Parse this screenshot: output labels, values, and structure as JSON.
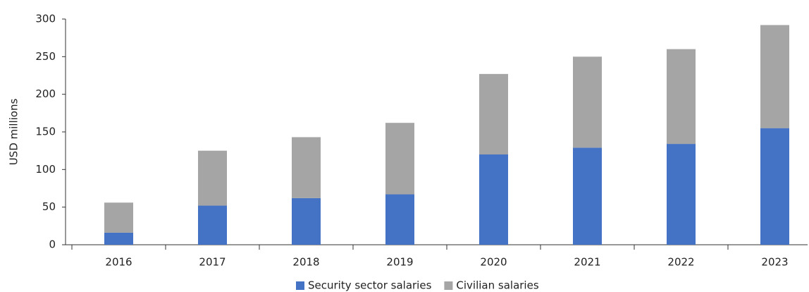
{
  "chart_data": {
    "type": "bar",
    "stacked": true,
    "y_label": "USD millions",
    "categories": [
      "2016",
      "2017",
      "2018",
      "2019",
      "2020",
      "2021",
      "2022",
      "2023"
    ],
    "series": [
      {
        "name": "Security sector salaries",
        "color": "#4472c4",
        "values": [
          16,
          52,
          62,
          67,
          120,
          129,
          134,
          155
        ]
      },
      {
        "name": "Civilian salaries",
        "color": "#a5a5a5",
        "values": [
          40,
          73,
          81,
          95,
          107,
          121,
          126,
          137
        ]
      }
    ],
    "ylim": [
      0,
      300
    ],
    "yticks": [
      0,
      50,
      100,
      150,
      200,
      250,
      300
    ],
    "legend": "bottom"
  }
}
